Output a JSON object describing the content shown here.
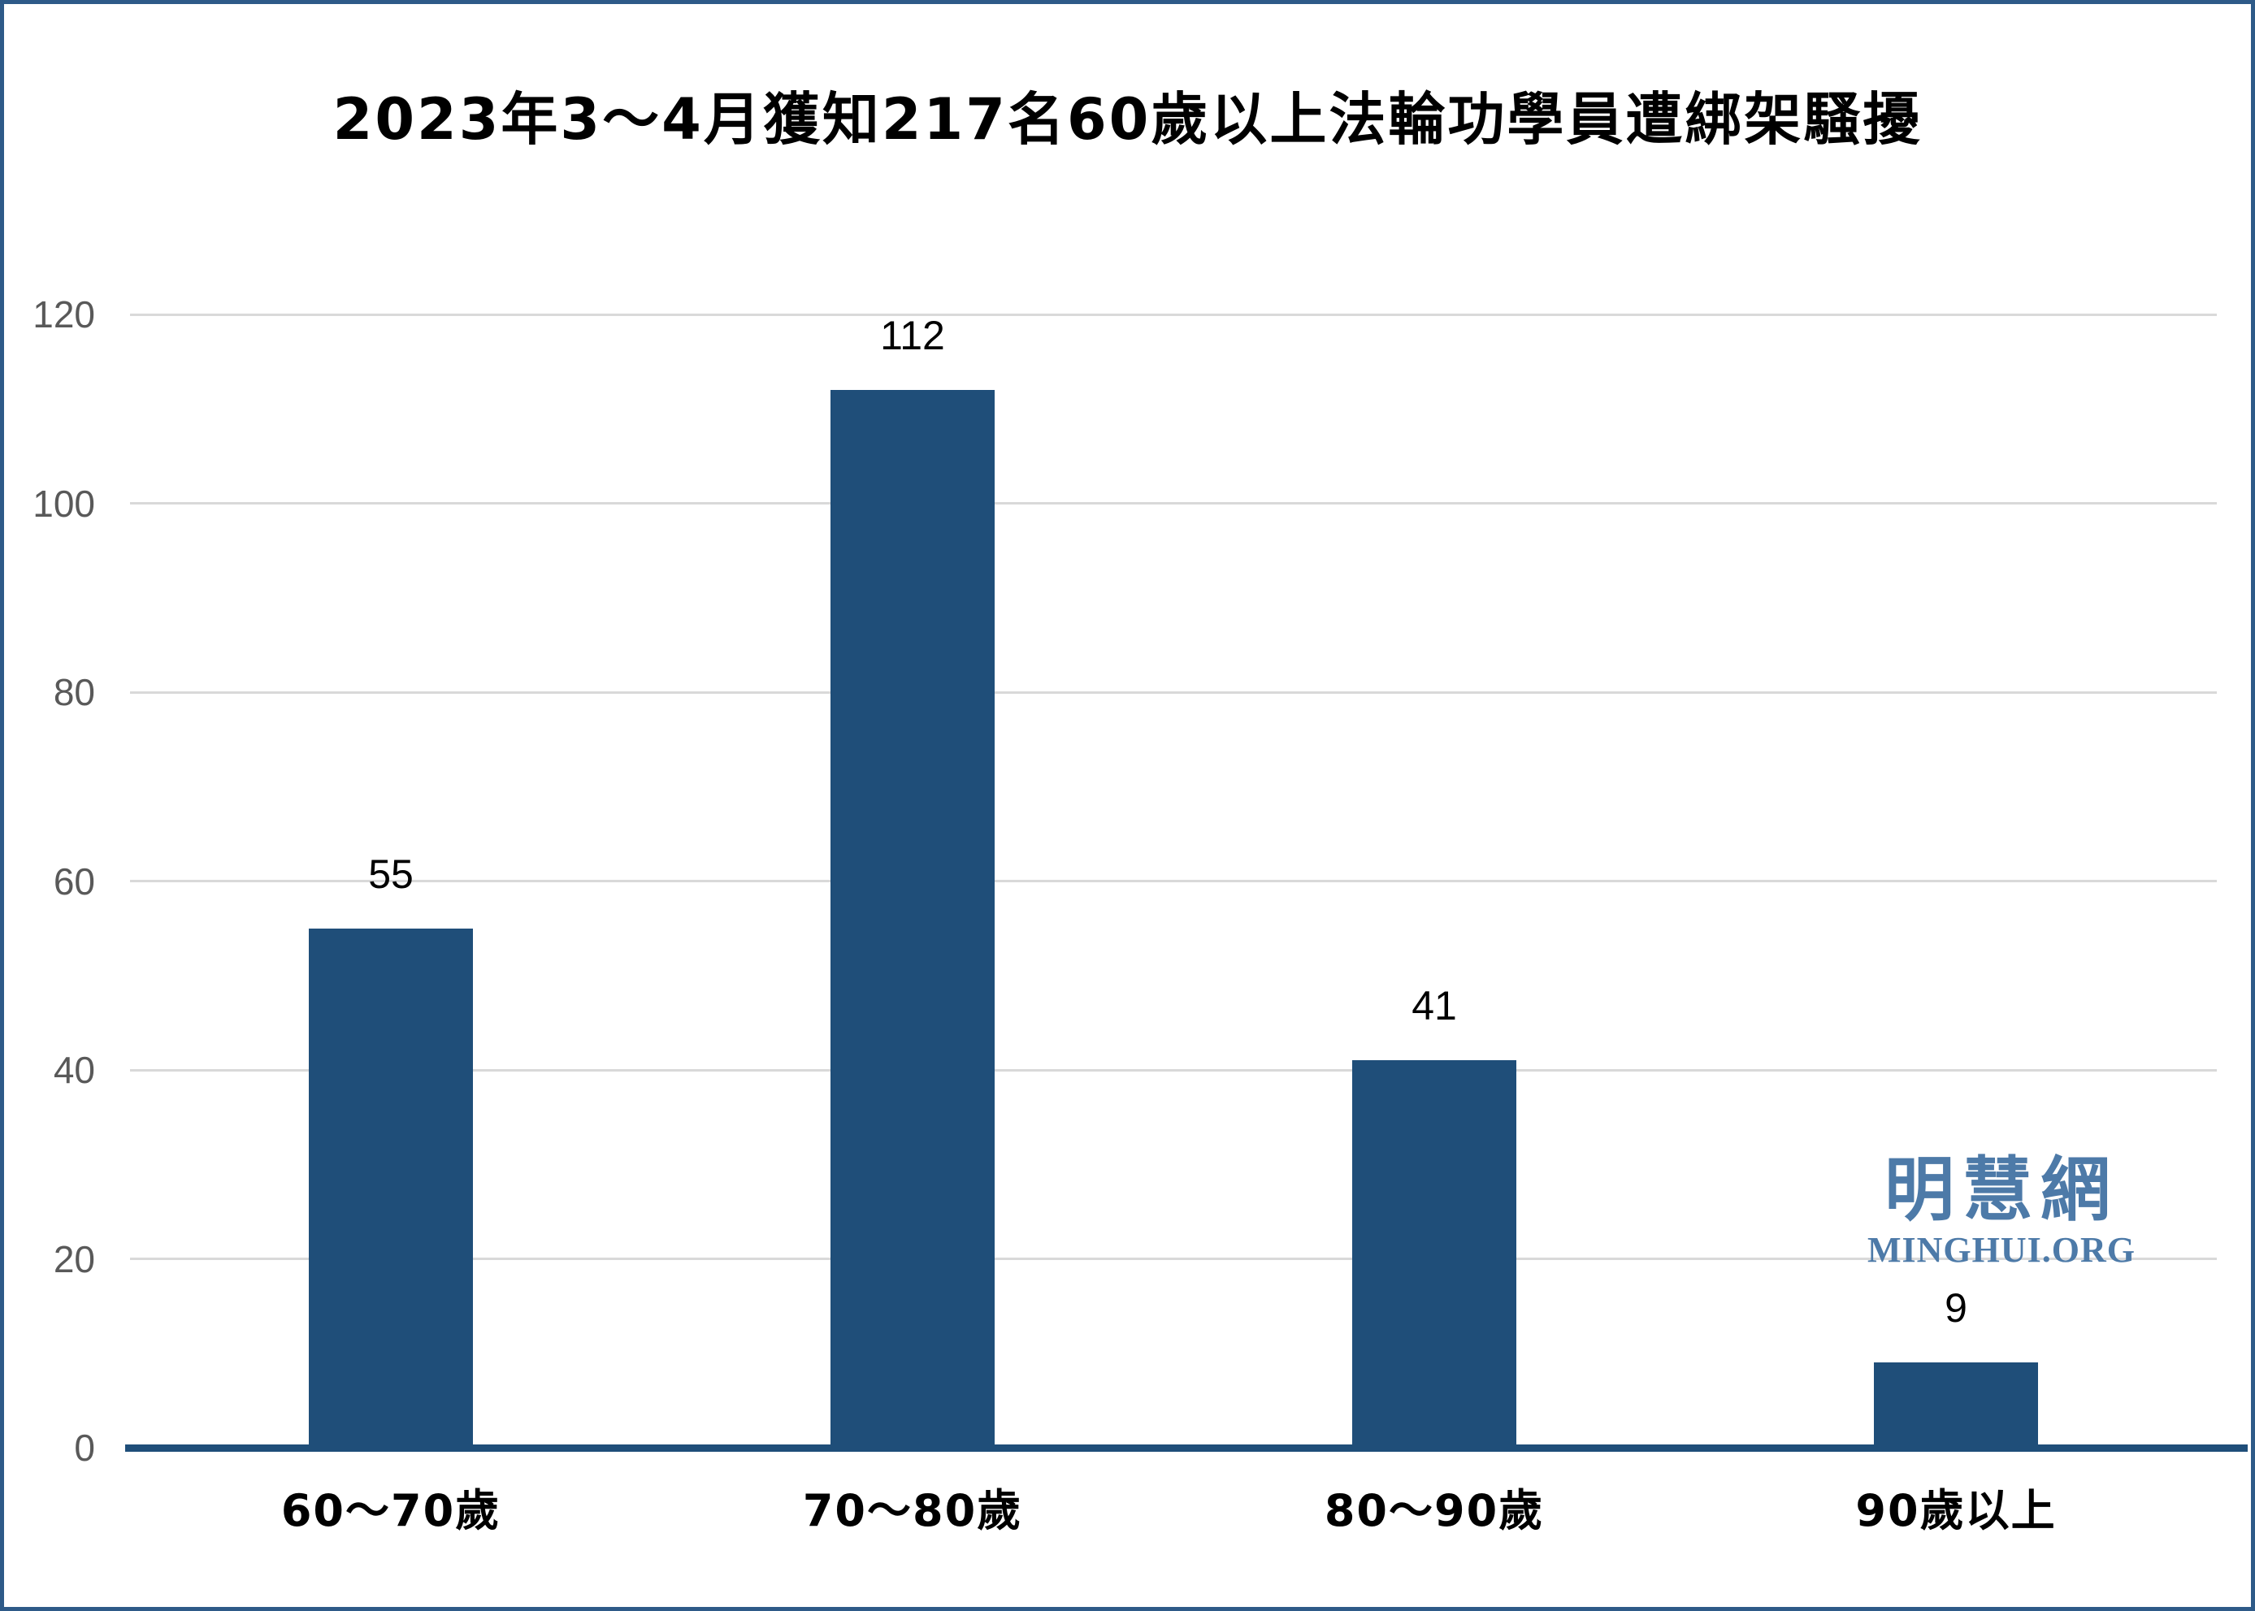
{
  "frame": {
    "border_color": "#2e5a88",
    "background_color": "#ffffff"
  },
  "chart_data": {
    "type": "bar",
    "title": "2023年3～4月獲知217名60歲以上法輪功學員遭綁架騷擾",
    "categories": [
      "60～70歲",
      "70～80歲",
      "80～90歲",
      "90歲以上"
    ],
    "values": [
      55,
      112,
      41,
      9
    ],
    "xlabel": "",
    "ylabel": "",
    "ylim": [
      0,
      120
    ],
    "yticks": [
      0,
      20,
      40,
      60,
      80,
      100,
      120
    ],
    "grid": true,
    "legend": "none",
    "bar_color": "#1f4e79",
    "axis_line_color": "#1f4e79",
    "gridline_color": "#d9d9d9",
    "tick_label_color": "#595959",
    "value_label_color": "#000000",
    "title_color": "#000000"
  },
  "watermark": {
    "chinese": "明慧網",
    "latin": "MINGHUI.ORG",
    "color": "#4d7aa8"
  }
}
